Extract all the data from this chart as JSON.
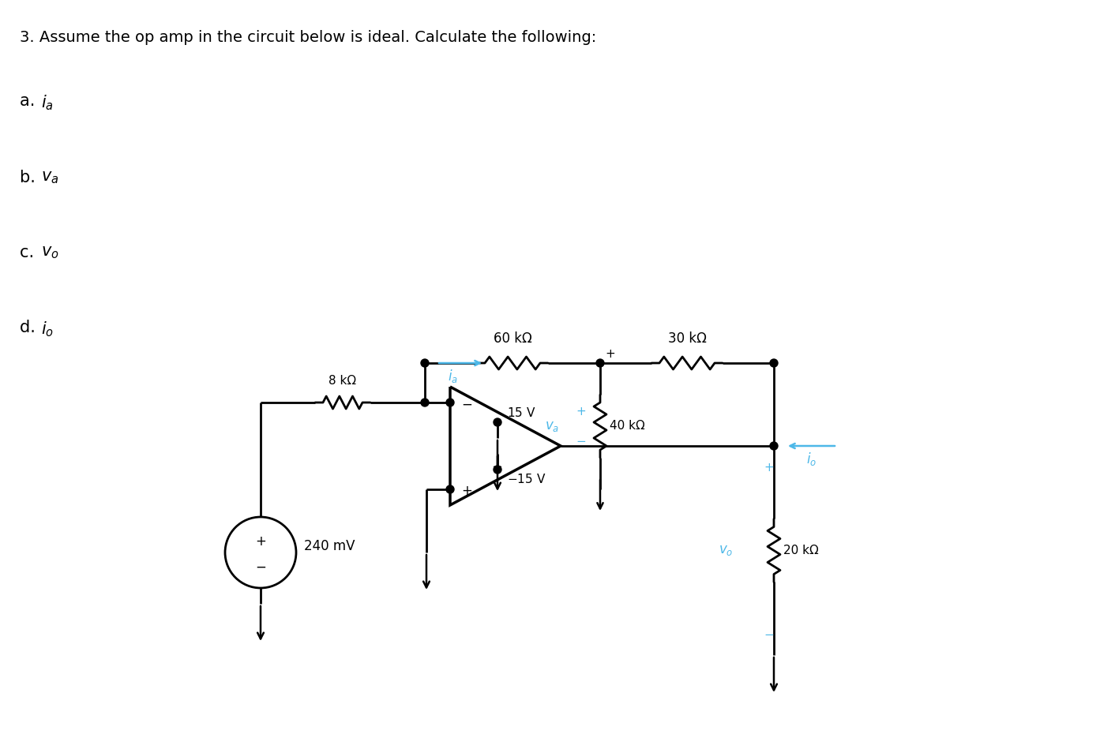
{
  "title": "3. Assume the op amp in the circuit below is ideal. Calculate the following:",
  "bg_color": "#ffffff",
  "black": "#000000",
  "blue": "#4db8e8",
  "label_60k": "60 kΩ",
  "label_30k": "30 kΩ",
  "label_8k": "8 kΩ",
  "label_40k": "40 kΩ",
  "label_20k": "20 kΩ",
  "label_240mv": "240 mV",
  "label_15v": "15 V",
  "label_m15v": "−15 V",
  "items": [
    {
      "label": "a.",
      "var": "i",
      "sub": "a"
    },
    {
      "label": "b.",
      "var": "v",
      "sub": "a"
    },
    {
      "label": "c.",
      "var": "v",
      "sub": "o"
    },
    {
      "label": "d.",
      "var": "i",
      "sub": "o"
    }
  ]
}
